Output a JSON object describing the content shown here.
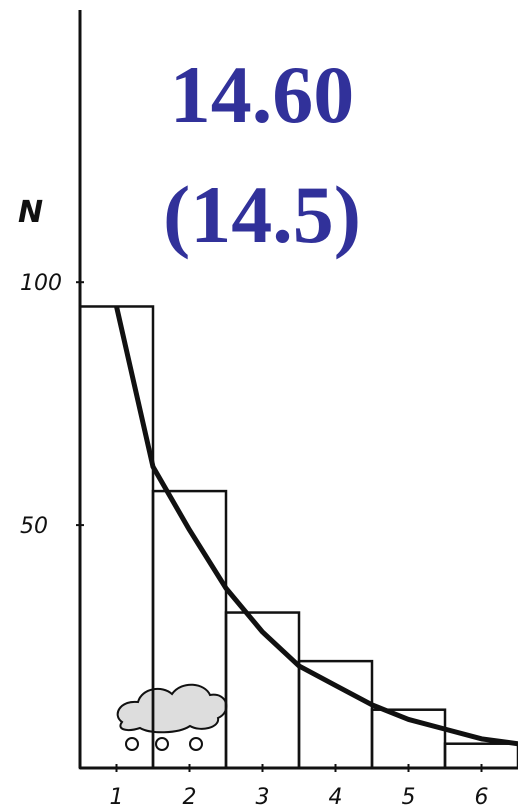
{
  "chart_data": {
    "type": "histogram",
    "title": "14.60",
    "subtitle": "(14.5)",
    "y_label": "N",
    "bins": [
      0.5,
      1.5,
      2.5,
      3.5,
      4.5,
      5.5,
      6.5
    ],
    "counts": [
      95,
      57,
      32,
      22,
      12,
      5
    ],
    "curve": {
      "x": [
        1,
        1.5,
        2,
        2.5,
        3,
        3.5,
        4,
        4.5,
        5,
        5.5,
        6,
        6.5
      ],
      "values": [
        95,
        62,
        49,
        37,
        28,
        21,
        17,
        13,
        10,
        8,
        6,
        5
      ]
    },
    "xlim": [
      0.5,
      6.5
    ],
    "xticks": [
      1,
      2,
      3,
      4,
      5,
      6
    ],
    "ylim": [
      0,
      155
    ],
    "yticks": [
      50,
      100
    ],
    "color": "#111111"
  }
}
